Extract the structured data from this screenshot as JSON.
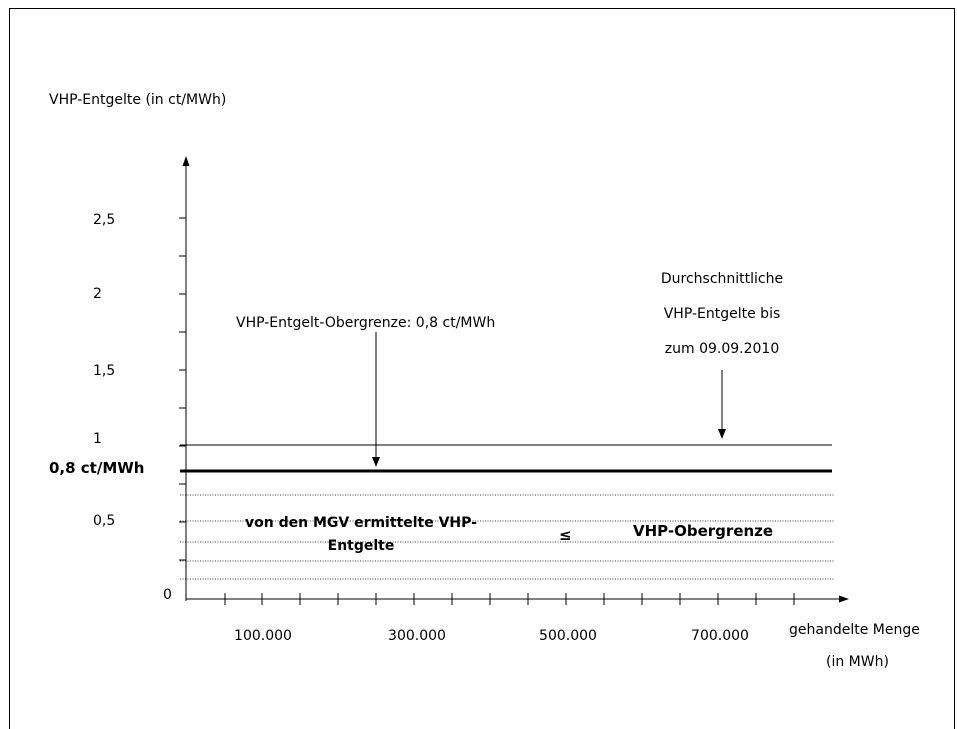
{
  "y_axis_title": "VHP-Entgelte (in ct/MWh)",
  "x_axis_title_line1": "gehandelte Menge",
  "x_axis_title_line2": "(in MWh)",
  "y_ticks": [
    "2,5",
    "2",
    "1,5",
    "1",
    "0,5",
    "0"
  ],
  "x_ticks": [
    "100.000",
    "300.000",
    "500.000",
    "700.000"
  ],
  "cap_label": "0,8 ct/MWh",
  "cap_annotation": "VHP-Entgelt-Obergrenze: 0,8 ct/MWh",
  "average_annotation_line1": "Durchschnittliche",
  "average_annotation_line2": "VHP-Entgelte bis",
  "average_annotation_line3": "zum 09.09.2010",
  "band_text_line1": "von den MGV ermittelte VHP-",
  "band_text_line2": "Entgelte",
  "relation_symbol": "≤",
  "band_text_right": "VHP-Obergrenze",
  "chart_data": {
    "type": "line",
    "y_range": [
      0,
      2.8
    ],
    "reference_lines": [
      {
        "y": 1.0,
        "style": "thin"
      },
      {
        "y": 0.8,
        "style": "bold"
      }
    ],
    "dotted_band_y": [
      0.1,
      0.25,
      0.35,
      0.5,
      0.65
    ]
  }
}
